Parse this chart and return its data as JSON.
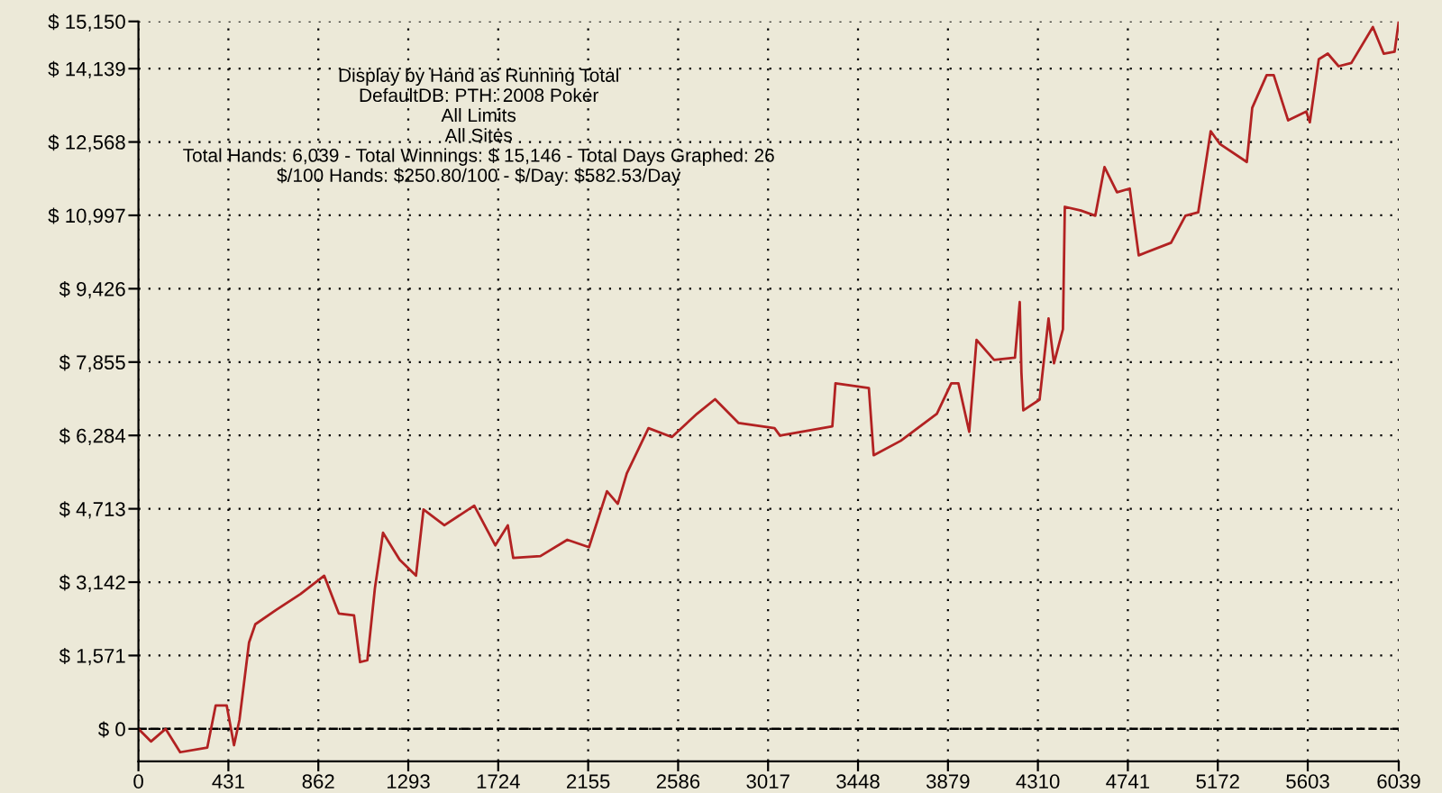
{
  "chart_data": {
    "type": "line",
    "annotations": [
      "Display by Hand as Running Total",
      "DefaultDB: PTH: 2008 Poker",
      "All Limits",
      "All Sites",
      "Total Hands: 6,039 - Total Winnings: $ 15,146 - Total Days Graphed: 26",
      "$/100 Hands: $250.80/100 - $/Day: $582.53/Day"
    ],
    "series": [
      {
        "color": "#b22222",
        "x": [
          0,
          60,
          130,
          200,
          330,
          370,
          423,
          458,
          484,
          530,
          560,
          658,
          777,
          890,
          960,
          1033,
          1062,
          1097,
          1133,
          1172,
          1252,
          1330,
          1366,
          1466,
          1609,
          1710,
          1770,
          1796,
          1926,
          2055,
          2159,
          2245,
          2297,
          2340,
          2444,
          2556,
          2677,
          2763,
          2876,
          3048,
          3074,
          3325,
          3340,
          3500,
          3523,
          3653,
          3826,
          3895,
          3929,
          3981,
          4016,
          4100,
          4200,
          4223,
          4231,
          4240,
          4318,
          4361,
          4387,
          4430,
          4439,
          4516,
          4585,
          4629,
          4689,
          4750,
          4793,
          4948,
          5017,
          5078,
          5138,
          5181,
          5311,
          5337,
          5406,
          5440,
          5509,
          5596,
          5613,
          5656,
          5699,
          5751,
          5812,
          5915,
          5967,
          6019,
          6039
        ],
        "values": [
          0,
          -270,
          0,
          -500,
          -400,
          500,
          500,
          -350,
          190,
          1850,
          2240,
          2540,
          2890,
          3280,
          2470,
          2430,
          1430,
          1470,
          3010,
          4200,
          3620,
          3280,
          4700,
          4360,
          4780,
          3930,
          4360,
          3660,
          3700,
          4050,
          3890,
          5090,
          4820,
          5470,
          6440,
          6250,
          6750,
          7060,
          6550,
          6440,
          6280,
          6480,
          7400,
          7300,
          5860,
          6170,
          6750,
          7400,
          7400,
          6360,
          8330,
          7900,
          7950,
          9140,
          7630,
          6820,
          7050,
          8790,
          7830,
          8560,
          11180,
          11100,
          10990,
          12030,
          11490,
          11570,
          10140,
          10410,
          10990,
          11060,
          12800,
          12530,
          12140,
          13300,
          14000,
          14000,
          13030,
          13220,
          12990,
          14340,
          14460,
          14190,
          14260,
          15030,
          14460,
          14500,
          15146
        ]
      }
    ],
    "xlim": [
      0,
      6039
    ],
    "xticks": [
      0,
      431,
      862,
      1293,
      1724,
      2155,
      2586,
      3017,
      3448,
      3879,
      4310,
      4741,
      5172,
      5603,
      6039
    ],
    "ylim": [
      -694,
      15150
    ],
    "yticks": [
      {
        "value": 0,
        "label": "$ 0"
      },
      {
        "value": 1571,
        "label": "$ 1,571"
      },
      {
        "value": 3142,
        "label": "$ 3,142"
      },
      {
        "value": 4713,
        "label": "$ 4,713"
      },
      {
        "value": 6284,
        "label": "$ 6,284"
      },
      {
        "value": 7855,
        "label": "$ 7,855"
      },
      {
        "value": 9426,
        "label": "$ 9,426"
      },
      {
        "value": 10997,
        "label": "$ 10,997"
      },
      {
        "value": 12568,
        "label": "$ 12,568"
      },
      {
        "value": 14139,
        "label": "$ 14,139"
      },
      {
        "value": 15150,
        "label": "$ 15,150"
      }
    ],
    "ref_lines": [
      {
        "axis": "y",
        "value": 0,
        "line_style": "dashed",
        "color": "#000000"
      }
    ],
    "grid": true,
    "line_style": "solid",
    "marker": "none"
  }
}
